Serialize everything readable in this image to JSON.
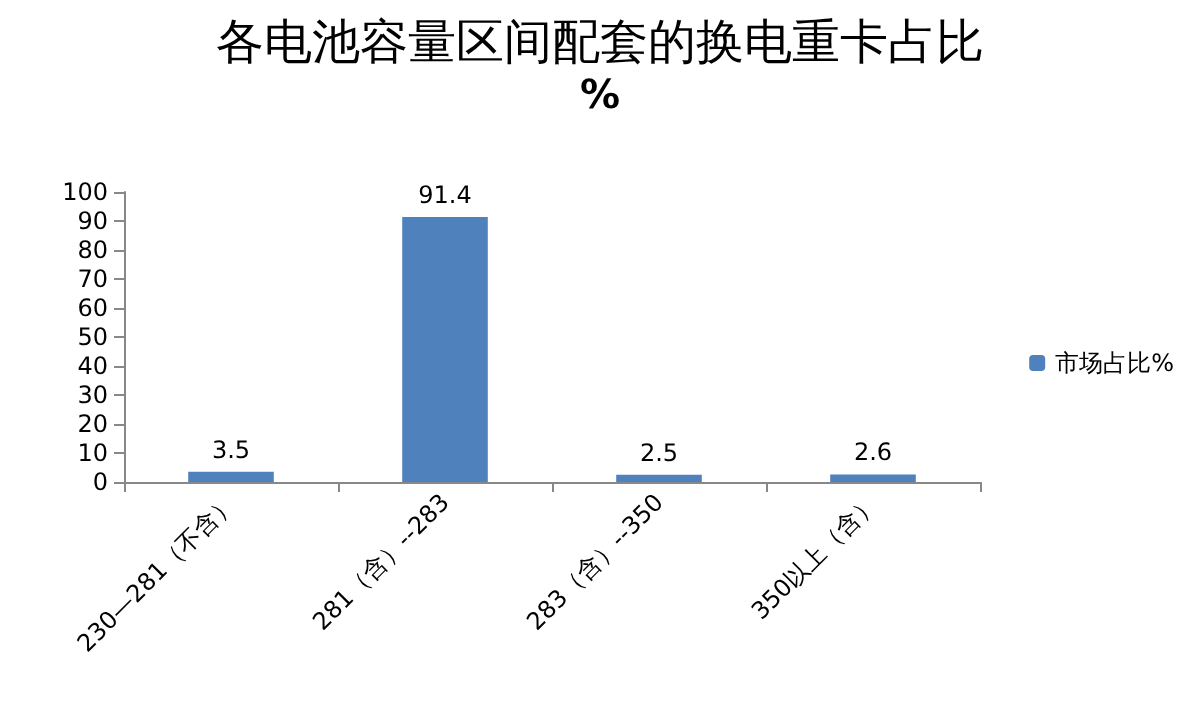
{
  "chart_data": {
    "type": "bar",
    "title": "各电池容量区间配套的换电重卡占比",
    "subtitle": "%",
    "categories": [
      "230—281（不含）",
      "281（含）--283",
      "283（含）--350",
      "350以上（含）"
    ],
    "series": [
      {
        "name": "市场占比%",
        "color": "#4f81bd",
        "values": [
          3.5,
          91.4,
          2.5,
          2.6
        ]
      }
    ],
    "ylim": [
      0,
      100
    ],
    "yticks": [
      0,
      10,
      20,
      30,
      40,
      50,
      60,
      70,
      80,
      90,
      100
    ],
    "grid": false,
    "legend": "right",
    "data_labels": true
  }
}
